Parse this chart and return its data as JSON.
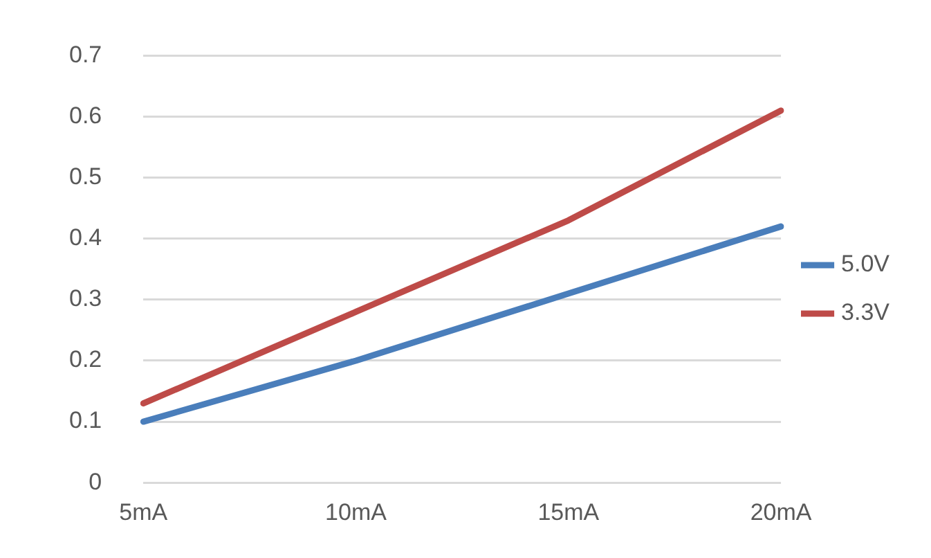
{
  "chart_data": {
    "type": "line",
    "categories": [
      "5mA",
      "10mA",
      "15mA",
      "20mA"
    ],
    "series": [
      {
        "name": "5.0V",
        "color": "#4a7ebb",
        "values": [
          0.1,
          0.2,
          0.31,
          0.42
        ]
      },
      {
        "name": "3.3V",
        "color": "#be4b48",
        "values": [
          0.13,
          0.28,
          0.43,
          0.61
        ]
      }
    ],
    "ylim": [
      0,
      0.7
    ],
    "yticks": [
      0,
      0.1,
      0.2,
      0.3,
      0.4,
      0.5,
      0.6,
      0.7
    ],
    "grid": "y",
    "legend": "right",
    "marker": "none"
  }
}
